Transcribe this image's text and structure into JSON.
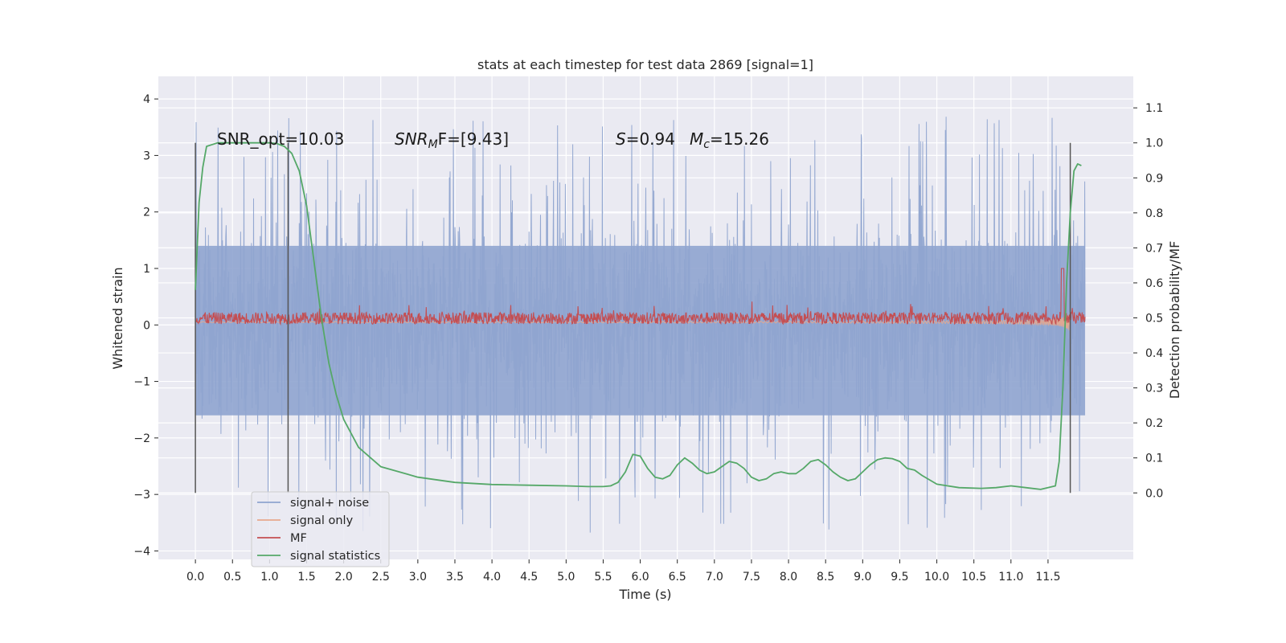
{
  "chart_data": {
    "type": "line",
    "title": "stats at each timestep for test data 2869 [signal=1]",
    "xlabel": "Time (s)",
    "ylabel_left": "Whitened strain",
    "ylabel_right": "Detection probability/MF",
    "xlim": [
      -0.5,
      12.65
    ],
    "ylim_left": [
      -4.15,
      4.4
    ],
    "ylim_right": [
      -0.19,
      1.19
    ],
    "x_ticks": [
      "0.0",
      "0.5",
      "1.0",
      "1.5",
      "2.0",
      "2.5",
      "3.0",
      "3.5",
      "4.0",
      "4.5",
      "5.0",
      "5.5",
      "6.0",
      "6.5",
      "7.0",
      "7.5",
      "8.0",
      "8.5",
      "9.0",
      "9.5",
      "10.0",
      "10.5",
      "11.0",
      "11.5"
    ],
    "x_tick_values": [
      0.0,
      0.5,
      1.0,
      1.5,
      2.0,
      2.5,
      3.0,
      3.5,
      4.0,
      4.5,
      5.0,
      5.5,
      6.0,
      6.5,
      7.0,
      7.5,
      8.0,
      8.5,
      9.0,
      9.5,
      10.0,
      10.5,
      11.0,
      11.5
    ],
    "y_ticks_left": [
      "4",
      "3",
      "2",
      "1",
      "0",
      "−1",
      "−2",
      "−3",
      "−4"
    ],
    "y_tick_values_left": [
      4,
      3,
      2,
      1,
      0,
      -1,
      -2,
      -3,
      -4
    ],
    "y_ticks_right": [
      "1.1",
      "1.0",
      "0.9",
      "0.8",
      "0.7",
      "0.6",
      "0.5",
      "0.4",
      "0.3",
      "0.2",
      "0.1",
      "0.0"
    ],
    "y_tick_values_right": [
      1.1,
      1.0,
      0.9,
      0.8,
      0.7,
      0.6,
      0.5,
      0.4,
      0.3,
      0.2,
      0.1,
      0.0
    ],
    "grid": true,
    "legend_position": "lower-left",
    "series": [
      {
        "name": "signal+ noise",
        "color": "#8fa4cf",
        "x_range": [
          0.0,
          12.0
        ],
        "amplitude_envelope": 1.45,
        "spike_max": 4.1,
        "spike_min": -3.7
      },
      {
        "name": "signal only",
        "color": "#e8a98d",
        "x_range": [
          0.0,
          12.0
        ],
        "chirp_peak_time": 11.8,
        "chirp_peak": 1.55
      },
      {
        "name": "MF",
        "color": "#c44e52",
        "x_range": [
          0.0,
          12.0
        ],
        "base": 0.12,
        "band": 0.15,
        "peak_time": 11.7,
        "peak": 1.0
      },
      {
        "name": "signal statistics",
        "color": "#55a868",
        "x": [
          0.0,
          0.05,
          0.1,
          0.15,
          0.3,
          0.5,
          0.8,
          1.0,
          1.1,
          1.2,
          1.3,
          1.4,
          1.5,
          1.6,
          1.7,
          1.8,
          1.9,
          2.0,
          2.2,
          2.5,
          3.0,
          3.5,
          4.0,
          4.5,
          5.0,
          5.3,
          5.5,
          5.6,
          5.7,
          5.8,
          5.9,
          6.0,
          6.1,
          6.2,
          6.3,
          6.4,
          6.5,
          6.6,
          6.7,
          6.8,
          6.9,
          7.0,
          7.1,
          7.2,
          7.3,
          7.4,
          7.5,
          7.6,
          7.7,
          7.8,
          7.9,
          8.0,
          8.1,
          8.2,
          8.3,
          8.4,
          8.5,
          8.6,
          8.7,
          8.8,
          8.9,
          9.0,
          9.1,
          9.2,
          9.3,
          9.4,
          9.5,
          9.6,
          9.7,
          9.8,
          10.0,
          10.3,
          10.6,
          10.8,
          11.0,
          11.2,
          11.4,
          11.6,
          11.65,
          11.7,
          11.75,
          11.8,
          11.85,
          11.9,
          11.95
        ],
        "y": [
          0.58,
          0.83,
          0.93,
          0.99,
          1.0,
          1.0,
          1.0,
          1.0,
          0.998,
          0.99,
          0.97,
          0.92,
          0.82,
          0.66,
          0.5,
          0.37,
          0.28,
          0.21,
          0.13,
          0.075,
          0.045,
          0.03,
          0.024,
          0.022,
          0.02,
          0.018,
          0.018,
          0.02,
          0.03,
          0.06,
          0.11,
          0.105,
          0.07,
          0.045,
          0.04,
          0.05,
          0.08,
          0.1,
          0.085,
          0.065,
          0.055,
          0.06,
          0.075,
          0.09,
          0.085,
          0.07,
          0.045,
          0.035,
          0.04,
          0.055,
          0.06,
          0.055,
          0.055,
          0.07,
          0.09,
          0.095,
          0.08,
          0.06,
          0.045,
          0.035,
          0.04,
          0.06,
          0.08,
          0.095,
          0.1,
          0.098,
          0.09,
          0.07,
          0.065,
          0.05,
          0.025,
          0.015,
          0.013,
          0.015,
          0.02,
          0.015,
          0.01,
          0.02,
          0.09,
          0.3,
          0.6,
          0.8,
          0.92,
          0.94,
          0.935
        ]
      }
    ],
    "vertical_lines": [
      0.0,
      1.25,
      11.8
    ],
    "annotations": [
      {
        "text": "SNR_opt=10.03",
        "x": 0.2
      },
      {
        "text_main": "SNR",
        "text_sub": "M",
        "text_tail": "F=[9.43]",
        "x": 2.6
      },
      {
        "text_main": "S",
        "text_tail": "=0.94",
        "x": 5.6
      },
      {
        "text_main": "M",
        "text_sub": "c",
        "text_tail": "=15.26",
        "x": 6.6
      }
    ]
  }
}
